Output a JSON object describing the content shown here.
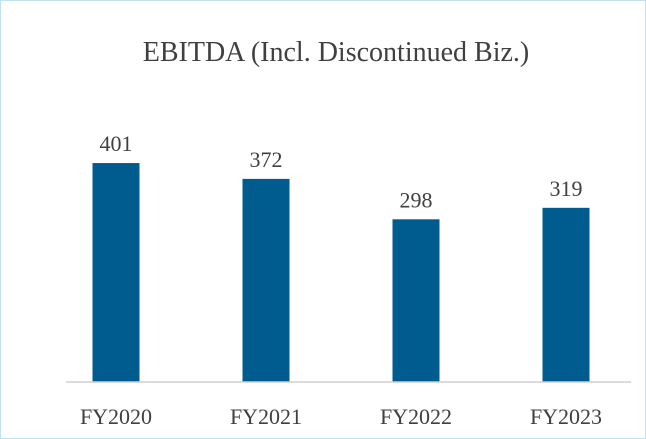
{
  "chart_data": {
    "type": "bar",
    "title": "EBITDA (Incl. Discontinued Biz.)",
    "categories": [
      "FY2020",
      "FY2021",
      "FY2022",
      "FY2023"
    ],
    "values": [
      401,
      372,
      298,
      319
    ],
    "color": "#005b8f",
    "ylim": [
      0,
      500
    ]
  }
}
